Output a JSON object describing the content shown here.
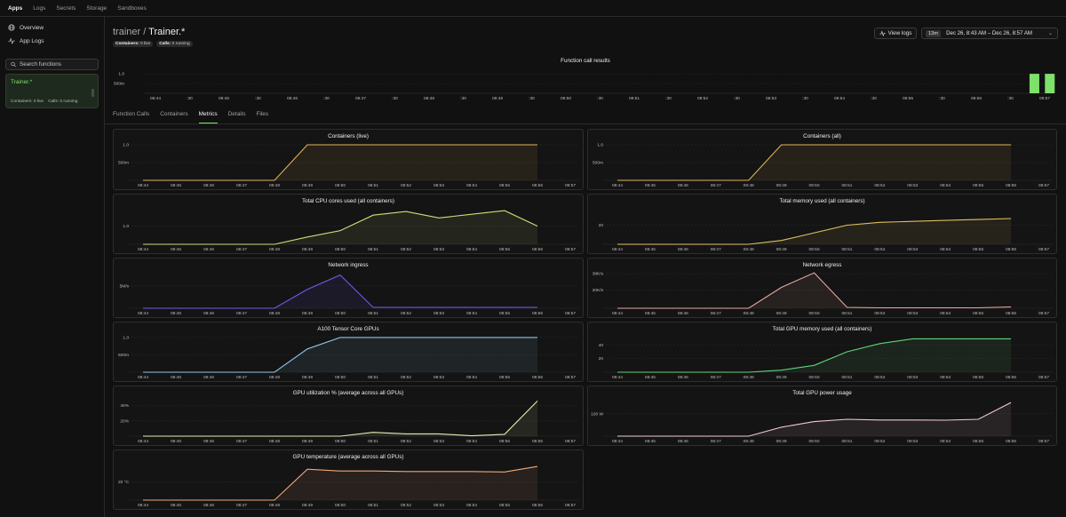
{
  "nav": {
    "items": [
      "Apps",
      "Logs",
      "Secrets",
      "Storage",
      "Sandboxes"
    ],
    "active": "Apps"
  },
  "sidebar": {
    "links": [
      {
        "label": "Overview",
        "icon": "globe-icon"
      },
      {
        "label": "App Logs",
        "icon": "activity-icon"
      }
    ],
    "search_placeholder": "Search functions",
    "function": {
      "name": "Trainer.*",
      "containers": "Containers: 0 live",
      "calls": "Calls: 0 running"
    }
  },
  "header": {
    "app": "trainer",
    "sep": "/",
    "function": "Trainer.*",
    "badges": [
      {
        "label": "Containers:",
        "value": "0 live"
      },
      {
        "label": "Calls:",
        "value": "0 running"
      }
    ],
    "view_logs": "View logs",
    "duration": "13m",
    "range": "Dec 26, 8:43 AM – Dec 26, 8:57 AM"
  },
  "tabs": [
    "Function Calls",
    "Containers",
    "Metrics",
    "Details",
    "Files"
  ],
  "active_tab": "Metrics",
  "colors": {
    "accent": "#7fe06a",
    "grid": "#2c2c2c"
  },
  "chart_data": [
    {
      "type": "bar",
      "title": "Function call results",
      "x_labels": [
        "08:44",
        ":30",
        "08:45",
        ":30",
        "08:46",
        ":30",
        "08:47",
        ":30",
        "08:48",
        ":30",
        "08:49",
        ":30",
        "08:50",
        ":30",
        "08:51",
        ":30",
        "08:52",
        ":30",
        "08:53",
        ":30",
        "08:54",
        ":30",
        "08:55",
        ":30",
        "08:56",
        ":30",
        "08:57"
      ],
      "y_ticks": [
        {
          "v": 1,
          "label": "1.0"
        },
        {
          "v": 0.5,
          "label": "500m"
        }
      ],
      "ylim": [
        0,
        1.05
      ],
      "bars": [
        {
          "x": 25.7,
          "value": 1
        },
        {
          "x": 26.15,
          "value": 1
        }
      ],
      "color": "#7fe06a"
    },
    {
      "type": "area",
      "title": "Containers (live)",
      "color": "#e0b357",
      "y_ticks": [
        {
          "v": 1,
          "label": "1.0"
        },
        {
          "v": 0.5,
          "label": "500m"
        }
      ],
      "ylim": [
        0,
        1.1
      ],
      "x": [
        0,
        1,
        2,
        3,
        4,
        5,
        6,
        7,
        8,
        9,
        10,
        11,
        12
      ],
      "values": [
        0,
        0,
        0,
        0,
        0,
        1,
        1,
        1,
        1,
        1,
        1,
        1,
        1
      ]
    },
    {
      "type": "area",
      "title": "Containers (all)",
      "color": "#e0b357",
      "y_ticks": [
        {
          "v": 1,
          "label": "1.0"
        },
        {
          "v": 0.5,
          "label": "500m"
        }
      ],
      "ylim": [
        0,
        1.1
      ],
      "x": [
        0,
        1,
        2,
        3,
        4,
        5,
        6,
        7,
        8,
        9,
        10,
        11,
        12
      ],
      "values": [
        0,
        0,
        0,
        0,
        0,
        1,
        1,
        1,
        1,
        1,
        1,
        1,
        1
      ]
    },
    {
      "type": "area",
      "title": "Total CPU cores used (all containers)",
      "color": "#c8e07a",
      "y_ticks": [
        {
          "v": 1,
          "label": "1.0"
        }
      ],
      "ylim": [
        0,
        2.1
      ],
      "x": [
        0,
        1,
        2,
        3,
        4,
        5,
        6,
        7,
        8,
        9,
        10,
        11,
        12
      ],
      "values": [
        0,
        0,
        0,
        0,
        0,
        0.4,
        0.75,
        1.6,
        1.8,
        1.45,
        1.65,
        1.85,
        1.0
      ]
    },
    {
      "type": "area",
      "title": "Total memory used (all containers)",
      "color": "#e0c060",
      "y_ticks": [
        {
          "v": 20,
          "label": "20"
        }
      ],
      "ylim": [
        0,
        40
      ],
      "x": [
        0,
        1,
        2,
        3,
        4,
        5,
        6,
        7,
        8,
        9,
        10,
        11,
        12
      ],
      "values": [
        0,
        0,
        0,
        0,
        0,
        4,
        12,
        20,
        23,
        24,
        25,
        26,
        27
      ]
    },
    {
      "type": "area",
      "title": "Network ingress",
      "color": "#6a5cf0",
      "y_ticks": [
        {
          "v": 5,
          "label": "5M/s"
        }
      ],
      "ylim": [
        0,
        8.5
      ],
      "x": [
        0,
        1,
        2,
        3,
        4,
        5,
        6,
        7,
        8,
        9,
        10,
        11,
        12
      ],
      "values": [
        0,
        0,
        0,
        0,
        0,
        4.2,
        7.4,
        0.2,
        0.2,
        0.2,
        0.2,
        0.2,
        0.2
      ]
    },
    {
      "type": "area",
      "title": "Network egress",
      "color": "#e9a7a0",
      "y_ticks": [
        {
          "v": 38,
          "label": "38K/s"
        },
        {
          "v": 20,
          "label": "20K/s"
        }
      ],
      "ylim": [
        0,
        42
      ],
      "x": [
        0,
        1,
        2,
        3,
        4,
        5,
        6,
        7,
        8,
        9,
        10,
        11,
        12
      ],
      "values": [
        0,
        0,
        0,
        0,
        0,
        23,
        39,
        1,
        0.5,
        0.5,
        0.5,
        0.5,
        1.5
      ]
    },
    {
      "type": "area",
      "title": "A100 Tensor Core GPUs",
      "color": "#8fc3ea",
      "y_ticks": [
        {
          "v": 1,
          "label": "1.0"
        },
        {
          "v": 0.5,
          "label": "500m"
        }
      ],
      "ylim": [
        0,
        1.1
      ],
      "x": [
        0,
        1,
        2,
        3,
        4,
        5,
        6,
        7,
        8,
        9,
        10,
        11,
        12
      ],
      "values": [
        0,
        0,
        0,
        0,
        0,
        0.67,
        1,
        1,
        1,
        1,
        1,
        1,
        1
      ]
    },
    {
      "type": "area",
      "title": "Total GPU memory used (all containers)",
      "color": "#5fd47a",
      "y_ticks": [
        {
          "v": 40,
          "label": "40"
        },
        {
          "v": 20,
          "label": "20"
        }
      ],
      "ylim": [
        0,
        56
      ],
      "x": [
        0,
        1,
        2,
        3,
        4,
        5,
        6,
        7,
        8,
        9,
        10,
        11,
        12
      ],
      "values": [
        0,
        0,
        0,
        0,
        0,
        3,
        10,
        30,
        42,
        49,
        49,
        49,
        49
      ]
    },
    {
      "type": "area",
      "title": "GPU utilization % (average across all GPUs)",
      "color": "#e8e8b0",
      "y_ticks": [
        {
          "v": 40,
          "label": "40%"
        },
        {
          "v": 20,
          "label": "20%"
        }
      ],
      "ylim": [
        0,
        50
      ],
      "x": [
        0,
        1,
        2,
        3,
        4,
        5,
        6,
        7,
        8,
        9,
        10,
        11,
        12
      ],
      "values": [
        0,
        0,
        0,
        0,
        0,
        0,
        0,
        5,
        3,
        3,
        0.5,
        2.5,
        46
      ]
    },
    {
      "type": "area",
      "title": "Total GPU power usage",
      "color": "#f0c8e0",
      "y_ticks": [
        {
          "v": 100,
          "label": "100 W"
        }
      ],
      "ylim": [
        0,
        170
      ],
      "x": [
        0,
        1,
        2,
        3,
        4,
        5,
        6,
        7,
        8,
        9,
        10,
        11,
        12
      ],
      "values": [
        0,
        0,
        0,
        0,
        0,
        40,
        65,
        75,
        72,
        72,
        71,
        75,
        150
      ]
    },
    {
      "type": "area",
      "title": "GPU temperature (average across all GPUs)",
      "color": "#f0a878",
      "y_ticks": [
        {
          "v": 20,
          "label": "20 °C"
        }
      ],
      "ylim": [
        0,
        42
      ],
      "x": [
        0,
        1,
        2,
        3,
        4,
        5,
        6,
        7,
        8,
        9,
        10,
        11,
        12
      ],
      "values": [
        0,
        0,
        0,
        0,
        0,
        34,
        32,
        32,
        31.5,
        31.5,
        31.5,
        31,
        37
      ]
    }
  ],
  "x_labels": [
    "08:44",
    "08:45",
    "08:46",
    "08:47",
    "08:48",
    "08:49",
    "08:50",
    "08:51",
    "08:52",
    "08:53",
    "08:54",
    "08:55",
    "08:56",
    "08:57"
  ]
}
